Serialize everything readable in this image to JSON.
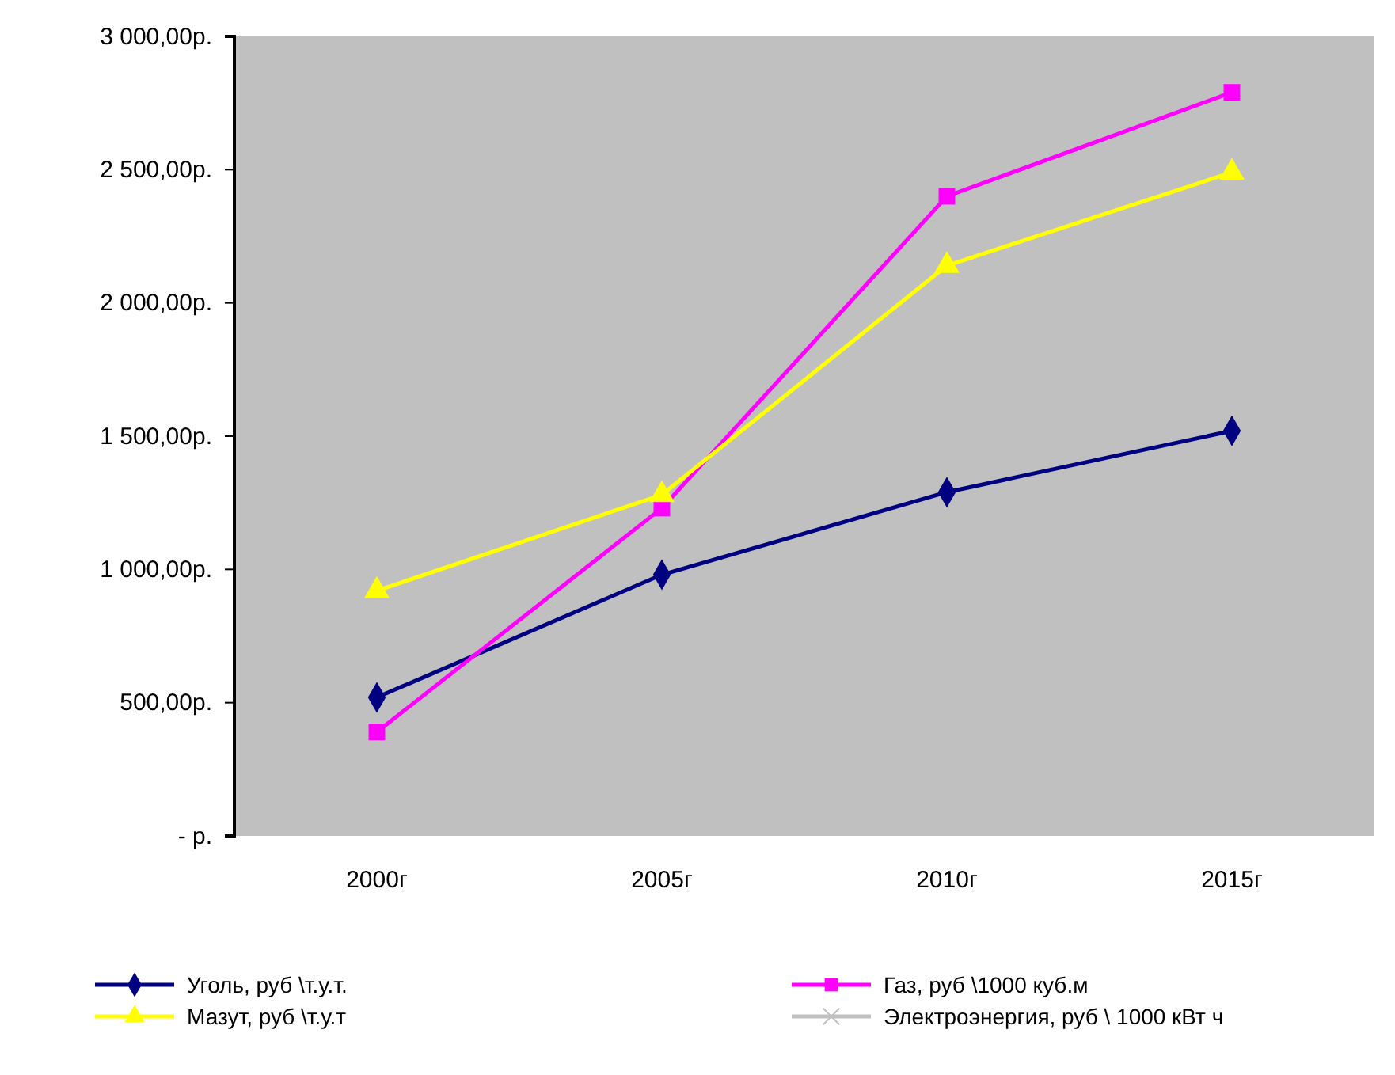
{
  "chart_data": {
    "type": "line",
    "categories": [
      "2000г",
      "2005г",
      "2010г",
      "2015г"
    ],
    "series": [
      {
        "name": "Уголь, руб \\т.у.т.",
        "color": "#000080",
        "marker": "diamond",
        "values": [
          520,
          980,
          1290,
          1520
        ]
      },
      {
        "name": "Газ, руб \\1000 куб.м",
        "color": "#ff00ff",
        "marker": "square",
        "values": [
          390,
          1230,
          2400,
          2790
        ]
      },
      {
        "name": "Мазут, руб \\т.у.т",
        "color": "#ffff00",
        "marker": "triangle",
        "values": [
          920,
          1280,
          2140,
          2490
        ]
      },
      {
        "name": "Электроэнергия, руб \\ 1000 кВт ч",
        "color": "#c0c0c0",
        "marker": "cross",
        "values": [
          null,
          null,
          null,
          null
        ]
      }
    ],
    "ylim": [
      0,
      3000
    ],
    "yticks": [
      {
        "value": 0,
        "label": "-   р."
      },
      {
        "value": 500,
        "label": "500,00р."
      },
      {
        "value": 1000,
        "label": "1 000,00р."
      },
      {
        "value": 1500,
        "label": "1 500,00р."
      },
      {
        "value": 2000,
        "label": "2 000,00р."
      },
      {
        "value": 2500,
        "label": "2 500,00р."
      },
      {
        "value": 3000,
        "label": "3 000,00р."
      }
    ],
    "grid": false,
    "legend": "bottom",
    "line_style": "solid"
  }
}
